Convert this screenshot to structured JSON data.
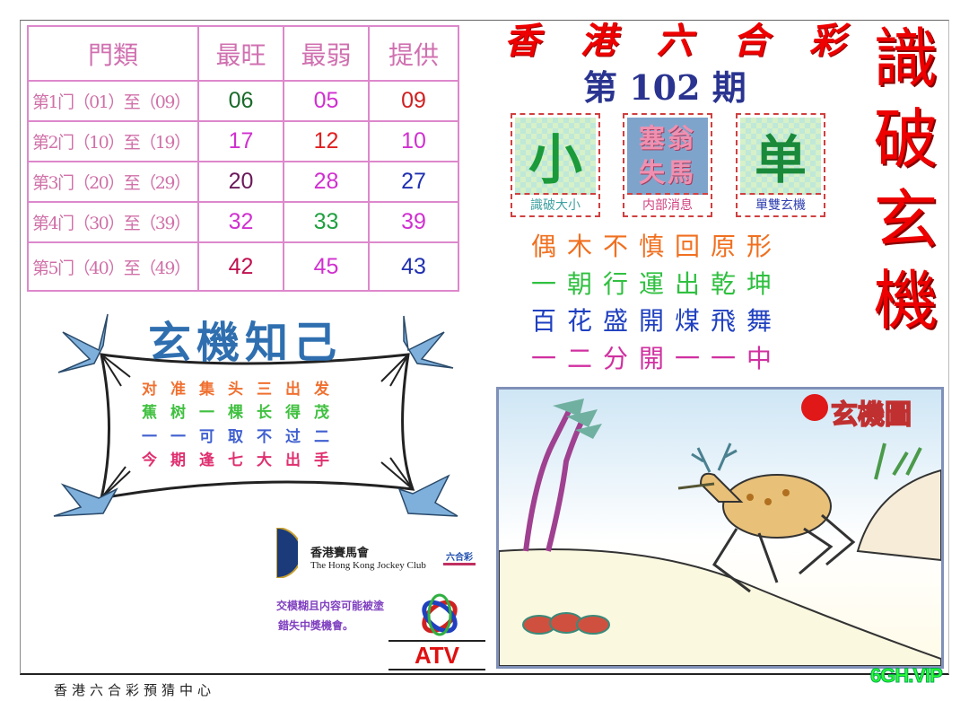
{
  "table": {
    "headers": [
      "門類",
      "最旺",
      "最弱",
      "提供"
    ],
    "rows": [
      {
        "label": "第1门（01）至（09）",
        "hot": "06",
        "cold": "05",
        "offer": "09"
      },
      {
        "label": "第2门（10）至（19）",
        "hot": "17",
        "cold": "12",
        "offer": "10"
      },
      {
        "label": "第3门（20）至（29）",
        "hot": "20",
        "cold": "28",
        "offer": "27"
      },
      {
        "label": "第4门（30）至（39）",
        "hot": "32",
        "cold": "33",
        "offer": "39"
      },
      {
        "label": "第5门（40）至（49）",
        "hot": "42",
        "cold": "45",
        "offer": "43"
      }
    ],
    "colors": {
      "hot": [
        "#1a6a2a",
        "#d030d0",
        "#6a1a5a",
        "#d030d0",
        "#c01050"
      ],
      "cold": [
        "#d030d0",
        "#e02020",
        "#d030d0",
        "#20a040",
        "#d030d0"
      ],
      "offer": [
        "#d02020",
        "#d030d0",
        "#2030b0",
        "#d030d0",
        "#2030b0"
      ]
    }
  },
  "header": {
    "title_chars": [
      "香",
      "港",
      "六",
      "合",
      "彩"
    ],
    "issue": "第 102 期",
    "vertical_title": [
      "識",
      "破",
      "玄",
      "機"
    ]
  },
  "tips": [
    {
      "image_text": "小",
      "caption": "識破大小",
      "caption_color": "#40a0a0"
    },
    {
      "image_text": "塞翁失馬",
      "caption": "内部消息",
      "caption_color": "#d04080"
    },
    {
      "image_text": "单",
      "caption": "單雙玄機",
      "caption_color": "#3040b0"
    }
  ],
  "slogans": [
    {
      "text": "偶木不慎回原形",
      "color": "#f07020"
    },
    {
      "text": "一朝行運出乾坤",
      "color": "#30c040"
    },
    {
      "text": "百花盛開煤飛舞",
      "color": "#2040c0"
    },
    {
      "text": "一二分開一一中",
      "color": "#d030a0"
    }
  ],
  "scroll": {
    "title": "玄機知己",
    "lines": [
      {
        "text": "对准集头三出发",
        "color": "#f07030"
      },
      {
        "text": "蕉树一棵长得茂",
        "color": "#40c040"
      },
      {
        "text": "一一可取不过二",
        "color": "#4060d0"
      },
      {
        "text": "今期逢七大出手",
        "color": "#e03070"
      }
    ]
  },
  "logos": {
    "hkjc_cn": "香港賽馬會",
    "hkjc_en": "The Hong Kong Jockey Club",
    "mark6": "六合彩",
    "atv": "ATV"
  },
  "notice": [
    "交模糊且内容可能被塗",
    "錯失中獎機會。"
  ],
  "picture": {
    "badge": "玄機圖"
  },
  "footer": "香港六合彩預猜中心",
  "watermark": "6GH.VIP"
}
